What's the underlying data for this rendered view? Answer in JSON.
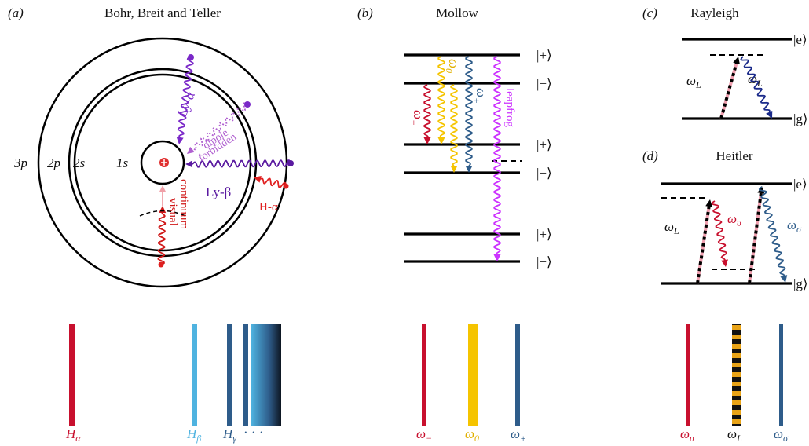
{
  "bohr": {
    "label": "(a)",
    "title": "Bohr, Breit and Teller",
    "shells": [
      "3p",
      "2p",
      "2s",
      "1s"
    ],
    "transitions": {
      "ly_alpha": "Ly-α",
      "dipole": "dipole",
      "forbidden": "forbidden",
      "ly_beta": "Ly-β",
      "h_alpha": "H-α",
      "visual": "visual",
      "continuum": "continuum"
    },
    "spectrum": [
      {
        "base": "H",
        "sub": "α"
      },
      {
        "base": "H",
        "sub": "β"
      },
      {
        "base": "H",
        "sub": "γ"
      },
      "· · ·"
    ]
  },
  "mollow": {
    "label": "(b)",
    "title": "Mollow",
    "states": [
      "|+⟩",
      "|−⟩",
      "|+⟩",
      "|−⟩",
      "|+⟩",
      "|−⟩"
    ],
    "arrows": [
      {
        "base": "ω",
        "sub": "−"
      },
      {
        "base": "ω",
        "sub": "0"
      },
      {
        "base": "ω",
        "sub": "+"
      },
      "leapfrog"
    ],
    "spectrum": [
      {
        "base": "ω",
        "sub": "−"
      },
      {
        "base": "ω",
        "sub": "0"
      },
      {
        "base": "ω",
        "sub": "+"
      }
    ]
  },
  "rayleigh": {
    "label": "(c)",
    "title": "Rayleigh",
    "states": [
      "|e⟩",
      "|g⟩"
    ],
    "arrows": [
      {
        "base": "ω",
        "sub": "L"
      },
      {
        "base": "ω",
        "sub": "L"
      }
    ]
  },
  "heitler": {
    "label": "(d)",
    "title": "Heitler",
    "states": [
      "|e⟩",
      "|g⟩"
    ],
    "arrows": [
      {
        "base": "ω",
        "sub": "L"
      },
      {
        "base": "ω",
        "sub": "υ"
      },
      {
        "base": "ω",
        "sub": "σ"
      }
    ],
    "spectrum": [
      {
        "base": "ω",
        "sub": "υ"
      },
      {
        "base": "ω",
        "sub": "L"
      },
      {
        "base": "ω",
        "sub": "σ"
      }
    ]
  }
}
